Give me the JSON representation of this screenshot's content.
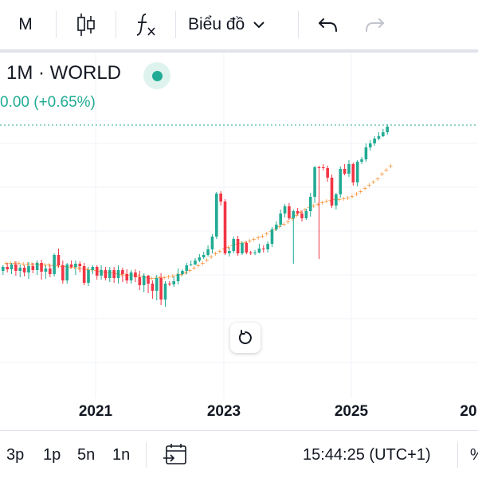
{
  "toolbar": {
    "interval_label": "M",
    "chart_type_icon": "candles-icon",
    "indicators_icon": "fx-icon",
    "chart_menu_label": "Biểu đồ",
    "undo_icon": "undo-icon",
    "redo_icon": "redo-icon"
  },
  "legend": {
    "title": "1M · WORLD",
    "change": "0.00 (+0.65%)",
    "status_color": "#22ab94"
  },
  "colors": {
    "up": "#22ab94",
    "down": "#f23645",
    "ma": "#f7841e",
    "price_line": "#22ab94",
    "grid": "#f0f3fa"
  },
  "chart_data": {
    "type": "candlestick",
    "x_tick_labels": [
      "2021",
      "2023",
      "2025",
      "20"
    ],
    "series": [
      {
        "type": "candlestick",
        "values": [
          [
            340,
            335,
            345,
            333
          ],
          [
            335,
            338,
            342,
            330
          ],
          [
            338,
            332,
            344,
            330
          ],
          [
            332,
            340,
            346,
            328
          ],
          [
            340,
            336,
            348,
            332
          ],
          [
            336,
            342,
            347,
            333
          ],
          [
            342,
            334,
            350,
            329
          ],
          [
            334,
            339,
            343,
            330
          ],
          [
            339,
            330,
            345,
            327
          ],
          [
            330,
            341,
            351,
            326
          ],
          [
            341,
            337,
            350,
            333
          ],
          [
            337,
            344,
            348,
            332
          ],
          [
            344,
            320,
            347,
            318
          ],
          [
            320,
            333,
            336,
            312
          ],
          [
            333,
            352,
            356,
            327
          ],
          [
            352,
            332,
            356,
            330
          ],
          [
            332,
            335,
            337,
            327
          ],
          [
            335,
            331,
            345,
            327
          ],
          [
            331,
            334,
            342,
            328
          ],
          [
            334,
            355,
            358,
            330
          ],
          [
            355,
            339,
            359,
            335
          ],
          [
            339,
            335,
            344,
            333
          ],
          [
            335,
            346,
            351,
            333
          ],
          [
            346,
            339,
            351,
            333
          ],
          [
            339,
            349,
            352,
            335
          ],
          [
            349,
            339,
            354,
            335
          ],
          [
            339,
            349,
            355,
            335
          ],
          [
            349,
            339,
            356,
            333
          ],
          [
            339,
            344,
            354,
            336
          ],
          [
            344,
            352,
            356,
            338
          ],
          [
            352,
            342,
            356,
            339
          ],
          [
            342,
            348,
            354,
            338
          ],
          [
            348,
            358,
            364,
            340
          ],
          [
            358,
            346,
            367,
            343
          ],
          [
            346,
            356,
            368,
            345
          ],
          [
            356,
            365,
            375,
            352
          ],
          [
            365,
            349,
            377,
            345
          ],
          [
            349,
            376,
            383,
            343
          ],
          [
            376,
            356,
            385,
            353
          ],
          [
            356,
            357,
            359,
            353
          ],
          [
            357,
            353,
            360,
            347
          ],
          [
            353,
            344,
            357,
            337
          ],
          [
            344,
            340,
            346,
            338
          ],
          [
            340,
            333,
            344,
            330
          ],
          [
            333,
            332,
            334,
            327
          ],
          [
            332,
            327,
            333,
            324
          ],
          [
            327,
            323,
            329,
            319
          ],
          [
            323,
            320,
            325,
            316
          ],
          [
            320,
            313,
            322,
            308
          ],
          [
            313,
            297,
            318,
            294
          ],
          [
            297,
            243,
            300,
            241
          ],
          [
            243,
            253,
            258,
            240
          ],
          [
            253,
            318,
            320,
            250
          ],
          [
            318,
            315,
            322,
            311
          ],
          [
            315,
            300,
            318,
            297
          ],
          [
            300,
            318,
            321,
            296
          ],
          [
            318,
            305,
            320,
            303
          ],
          [
            305,
            317,
            319,
            303
          ],
          [
            317,
            318,
            320,
            315
          ],
          [
            318,
            317,
            320,
            314
          ],
          [
            317,
            312,
            318,
            306
          ],
          [
            312,
            313,
            317,
            308
          ],
          [
            313,
            306,
            317,
            303
          ],
          [
            306,
            288,
            310,
            285
          ],
          [
            288,
            282,
            290,
            278
          ],
          [
            282,
            268,
            285,
            263
          ],
          [
            268,
            259,
            273,
            256
          ],
          [
            259,
            274,
            276,
            255
          ],
          [
            274,
            265,
            331,
            263
          ],
          [
            265,
            268,
            270,
            261
          ],
          [
            268,
            274,
            278,
            264
          ],
          [
            274,
            265,
            276,
            262
          ],
          [
            265,
            247,
            272,
            242
          ],
          [
            247,
            210,
            255,
            208
          ],
          [
            210,
            210,
            325,
            208
          ],
          [
            210,
            211,
            214,
            206
          ],
          [
            211,
            223,
            228,
            208
          ],
          [
            223,
            258,
            261,
            219
          ],
          [
            258,
            244,
            263,
            242
          ],
          [
            244,
            212,
            248,
            209
          ],
          [
            212,
            218,
            220,
            206
          ],
          [
            218,
            206,
            222,
            201
          ],
          [
            206,
            229,
            233,
            204
          ],
          [
            229,
            203,
            234,
            201
          ],
          [
            203,
            200,
            206,
            197
          ],
          [
            200,
            185,
            203,
            180
          ],
          [
            185,
            180,
            189,
            176
          ],
          [
            180,
            174,
            183,
            171
          ],
          [
            174,
            171,
            176,
            166
          ],
          [
            171,
            166,
            172,
            162
          ],
          [
            166,
            159,
            169,
            156
          ]
        ]
      },
      {
        "type": "ma",
        "values": [
          330,
          330,
          330,
          330,
          331,
          331,
          331,
          331,
          332,
          332,
          332,
          333,
          333,
          334,
          334,
          335,
          335,
          336,
          337,
          338,
          338,
          339,
          340,
          341,
          342,
          342,
          343,
          344,
          345,
          345,
          345,
          346,
          347,
          348,
          349,
          349,
          348,
          348,
          347,
          346,
          345,
          344,
          342,
          339,
          336,
          333,
          330,
          326,
          322,
          318,
          315,
          312,
          310,
          308,
          306,
          305,
          304,
          302,
          300,
          298,
          296,
          293,
          290,
          287,
          284,
          281,
          278,
          274,
          270,
          266,
          263,
          260,
          258,
          256,
          254,
          252,
          251,
          250,
          250,
          249,
          248,
          246,
          243,
          240,
          236,
          232,
          228,
          224,
          218,
          213,
          208
        ]
      }
    ],
    "y_range": [
      520,
      110
    ],
    "price_line_value": 157
  },
  "reset_icon": "reset-icon",
  "bottombar": {
    "ranges": [
      "3p",
      "1p",
      "5n",
      "1n"
    ],
    "date_range_icon": "calendar-range-icon",
    "time": "15:44:25 (UTC+1)",
    "percent_label": "%"
  }
}
